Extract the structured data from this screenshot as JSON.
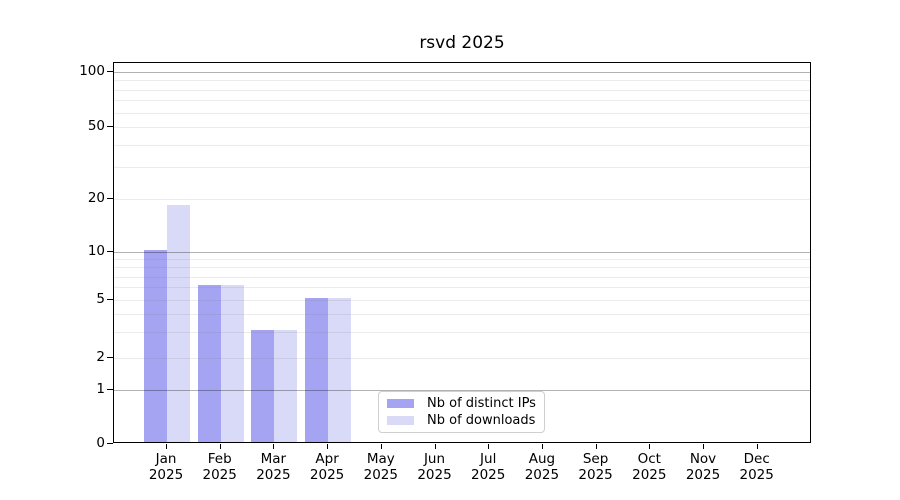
{
  "chart_data": {
    "type": "bar",
    "title": "rsvd 2025",
    "year": "2025",
    "months": [
      "Jan",
      "Feb",
      "Mar",
      "Apr",
      "May",
      "Jun",
      "Jul",
      "Aug",
      "Sep",
      "Oct",
      "Nov",
      "Dec"
    ],
    "series": [
      {
        "name": "Nb of distinct IPs",
        "color": "#a4a4f2",
        "values": [
          10,
          6,
          3,
          5,
          0,
          0,
          0,
          0,
          0,
          0,
          0,
          0
        ]
      },
      {
        "name": "Nb of downloads",
        "color": "#d9d9f8",
        "values": [
          18,
          6,
          3,
          5,
          0,
          0,
          0,
          0,
          0,
          0,
          0,
          0
        ]
      }
    ],
    "y_axis": {
      "scale": "symlog",
      "range": [
        0,
        100
      ],
      "tick_labels": [
        100,
        50,
        20,
        10,
        5,
        2,
        1,
        0
      ],
      "major_gridlines": [
        1,
        10,
        100
      ],
      "minor_gridlines": [
        2,
        3,
        4,
        5,
        6,
        7,
        8,
        9,
        20,
        30,
        40,
        50,
        60,
        70,
        80,
        90
      ]
    },
    "x_axis": {
      "label_format": "month over year"
    },
    "legend": {
      "position": "lower center",
      "entries": [
        "Nb of distinct IPs",
        "Nb of downloads"
      ]
    },
    "colors": {
      "bar_distinct_ips": "#a4a4f2",
      "bar_downloads": "#d9d9f8",
      "major_grid": "#b3b3b3",
      "minor_grid": "#eaeaea",
      "axis": "#000000",
      "background": "#ffffff"
    }
  }
}
